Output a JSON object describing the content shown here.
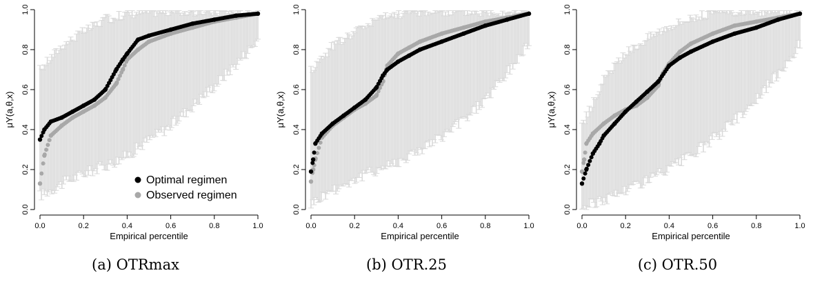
{
  "captions": [
    "(a) OTRmax",
    "(b) OTR.25",
    "(c) OTR.50"
  ],
  "colors": {
    "optimal": "#000000",
    "observed": "#a8a8a8",
    "errorbar": "#d9d9d9"
  },
  "chart_data": [
    {
      "type": "scatter",
      "xlabel": "Empirical percentile",
      "ylabel": "μY(a,θ,x)",
      "xlim": [
        0,
        1
      ],
      "ylim": [
        0,
        1
      ],
      "xticks": [
        "0.0",
        "0.2",
        "0.4",
        "0.6",
        "0.8",
        "1.0"
      ],
      "yticks": [
        "0.0",
        "0.2",
        "0.4",
        "0.6",
        "0.8",
        "1.0"
      ],
      "grid": false,
      "legend": {
        "position": "bottom-right",
        "entries": [
          "Optimal regimen",
          "Observed regimen"
        ]
      },
      "series": [
        {
          "name": "Optimal regimen",
          "x": [
            0.0,
            0.02,
            0.05,
            0.1,
            0.15,
            0.2,
            0.25,
            0.3,
            0.35,
            0.38,
            0.4,
            0.45,
            0.5,
            0.6,
            0.7,
            0.8,
            0.9,
            1.0
          ],
          "y": [
            0.35,
            0.4,
            0.44,
            0.46,
            0.49,
            0.52,
            0.55,
            0.6,
            0.7,
            0.75,
            0.78,
            0.85,
            0.87,
            0.9,
            0.93,
            0.95,
            0.97,
            0.98
          ]
        },
        {
          "name": "Observed regimen",
          "x": [
            0.0,
            0.02,
            0.05,
            0.1,
            0.15,
            0.2,
            0.25,
            0.3,
            0.35,
            0.38,
            0.4,
            0.45,
            0.5,
            0.6,
            0.7,
            0.8,
            0.9,
            1.0
          ],
          "y": [
            0.13,
            0.27,
            0.37,
            0.42,
            0.46,
            0.49,
            0.52,
            0.56,
            0.63,
            0.7,
            0.75,
            0.8,
            0.84,
            0.88,
            0.91,
            0.94,
            0.96,
            0.98
          ]
        }
      ],
      "errorbar_range": {
        "x": [
          0.0,
          0.1,
          0.2,
          0.3,
          0.4,
          0.5,
          0.6,
          0.7,
          0.8,
          0.9,
          1.0
        ],
        "lower": [
          0.07,
          0.13,
          0.18,
          0.22,
          0.27,
          0.35,
          0.42,
          0.52,
          0.62,
          0.73,
          0.85
        ],
        "upper": [
          0.7,
          0.82,
          0.89,
          0.95,
          0.98,
          0.99,
          0.99,
          0.99,
          0.99,
          0.99,
          0.99
        ]
      }
    },
    {
      "type": "scatter",
      "xlabel": "Empirical percentile",
      "ylabel": "μY(a,θ,x)",
      "xlim": [
        0,
        1
      ],
      "ylim": [
        0,
        1
      ],
      "xticks": [
        "0.0",
        "0.2",
        "0.4",
        "0.6",
        "0.8",
        "1.0"
      ],
      "yticks": [
        "0.0",
        "0.2",
        "0.4",
        "0.6",
        "0.8",
        "1.0"
      ],
      "grid": false,
      "series": [
        {
          "name": "Optimal regimen",
          "x": [
            0.0,
            0.01,
            0.02,
            0.05,
            0.1,
            0.15,
            0.2,
            0.25,
            0.3,
            0.33,
            0.35,
            0.4,
            0.45,
            0.5,
            0.6,
            0.7,
            0.8,
            0.9,
            1.0
          ],
          "y": [
            0.19,
            0.25,
            0.33,
            0.38,
            0.43,
            0.47,
            0.51,
            0.55,
            0.61,
            0.67,
            0.7,
            0.74,
            0.77,
            0.8,
            0.84,
            0.88,
            0.92,
            0.95,
            0.98
          ]
        },
        {
          "name": "Observed regimen",
          "x": [
            0.0,
            0.01,
            0.02,
            0.05,
            0.1,
            0.15,
            0.2,
            0.25,
            0.3,
            0.33,
            0.35,
            0.4,
            0.45,
            0.5,
            0.6,
            0.7,
            0.8,
            0.9,
            1.0
          ],
          "y": [
            0.14,
            0.2,
            0.25,
            0.36,
            0.42,
            0.46,
            0.5,
            0.53,
            0.57,
            0.64,
            0.72,
            0.78,
            0.81,
            0.84,
            0.88,
            0.91,
            0.94,
            0.96,
            0.98
          ]
        }
      ],
      "errorbar_range": {
        "x": [
          0.0,
          0.1,
          0.2,
          0.3,
          0.4,
          0.5,
          0.6,
          0.7,
          0.8,
          0.9,
          1.0
        ],
        "lower": [
          0.03,
          0.1,
          0.15,
          0.2,
          0.24,
          0.3,
          0.36,
          0.45,
          0.55,
          0.68,
          0.83
        ],
        "upper": [
          0.7,
          0.82,
          0.89,
          0.95,
          0.98,
          0.99,
          0.99,
          0.99,
          0.99,
          0.99,
          0.99
        ]
      }
    },
    {
      "type": "scatter",
      "xlabel": "Empirical percentile",
      "ylabel": "μY(a,θ,x)",
      "xlim": [
        0,
        1
      ],
      "ylim": [
        0,
        1
      ],
      "xticks": [
        "0.0",
        "0.2",
        "0.4",
        "0.6",
        "0.8",
        "1.0"
      ],
      "yticks": [
        "0.0",
        "0.2",
        "0.4",
        "0.6",
        "0.8",
        "1.0"
      ],
      "grid": false,
      "series": [
        {
          "name": "Optimal regimen",
          "x": [
            0.0,
            0.02,
            0.05,
            0.08,
            0.1,
            0.15,
            0.2,
            0.25,
            0.3,
            0.35,
            0.4,
            0.45,
            0.5,
            0.6,
            0.7,
            0.8,
            0.9,
            1.0
          ],
          "y": [
            0.13,
            0.2,
            0.28,
            0.33,
            0.37,
            0.43,
            0.49,
            0.54,
            0.59,
            0.64,
            0.72,
            0.76,
            0.79,
            0.84,
            0.88,
            0.91,
            0.95,
            0.98
          ]
        },
        {
          "name": "Observed regimen",
          "x": [
            0.0,
            0.01,
            0.02,
            0.05,
            0.1,
            0.15,
            0.2,
            0.25,
            0.3,
            0.35,
            0.37,
            0.4,
            0.45,
            0.5,
            0.6,
            0.7,
            0.8,
            0.9,
            1.0
          ],
          "y": [
            0.19,
            0.25,
            0.33,
            0.38,
            0.43,
            0.47,
            0.5,
            0.52,
            0.56,
            0.62,
            0.68,
            0.73,
            0.79,
            0.83,
            0.88,
            0.92,
            0.94,
            0.96,
            0.98
          ]
        }
      ],
      "errorbar_range": {
        "x": [
          0.0,
          0.1,
          0.2,
          0.3,
          0.4,
          0.5,
          0.6,
          0.7,
          0.8,
          0.9,
          1.0
        ],
        "lower": [
          0.01,
          0.05,
          0.1,
          0.15,
          0.2,
          0.27,
          0.35,
          0.45,
          0.55,
          0.68,
          0.83
        ],
        "upper": [
          0.42,
          0.65,
          0.78,
          0.86,
          0.92,
          0.96,
          0.98,
          0.99,
          0.99,
          0.99,
          0.99
        ]
      }
    }
  ]
}
